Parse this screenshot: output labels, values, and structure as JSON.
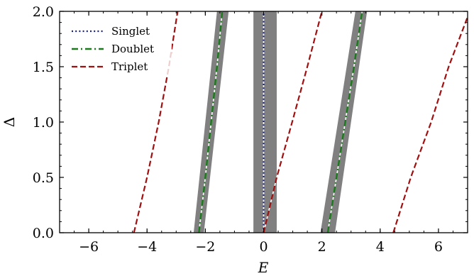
{
  "chart_data": {
    "type": "line",
    "xlabel": "E",
    "ylabel": "Δ",
    "xlim": [
      -7,
      7
    ],
    "ylim": [
      0,
      2
    ],
    "xticks": [
      -6,
      -4,
      -2,
      0,
      2,
      4,
      6
    ],
    "xtick_labels": [
      "−6",
      "−4",
      "−2",
      "0",
      "2",
      "4",
      "6"
    ],
    "yticks": [
      0,
      0.5,
      1,
      1.5,
      2
    ],
    "ytick_labels": [
      "0.0",
      "0.5",
      "1.0",
      "1.5",
      "2.0"
    ],
    "legend_position": "top-left",
    "colors": {
      "singlet": "#1a237e",
      "doublet": "#1b7a1b",
      "triplet": "#a01010",
      "band": "#808080",
      "underline": "#ffffff"
    },
    "bands": [
      {
        "name": "singlet-band",
        "left": [
          [
            -0.35,
            0
          ],
          [
            -0.35,
            2
          ]
        ],
        "right": [
          [
            0.45,
            0
          ],
          [
            0.45,
            2
          ]
        ]
      },
      {
        "name": "doublet-band-left",
        "left": [
          [
            -2.4,
            0
          ],
          [
            -1.6,
            2
          ]
        ],
        "right": [
          [
            -2.05,
            0
          ],
          [
            -1.2,
            2
          ]
        ]
      },
      {
        "name": "doublet-band-right",
        "left": [
          [
            1.95,
            0
          ],
          [
            3.15,
            2
          ]
        ],
        "right": [
          [
            2.45,
            0
          ],
          [
            3.55,
            2
          ]
        ]
      }
    ],
    "series": [
      {
        "name": "Singlet",
        "style": "dotted",
        "segments": [
          [
            [
              0,
              0
            ],
            [
              0,
              2
            ]
          ]
        ]
      },
      {
        "name": "Doublet",
        "style": "dashdot",
        "segments": [
          [
            [
              -2.22,
              0
            ],
            [
              -2.0,
              0.5
            ],
            [
              -1.8,
              1.0
            ],
            [
              -1.6,
              1.5
            ],
            [
              -1.42,
              2.0
            ]
          ],
          [
            [
              2.2,
              0
            ],
            [
              2.5,
              0.5
            ],
            [
              2.8,
              1.0
            ],
            [
              3.1,
              1.5
            ],
            [
              3.38,
              2.0
            ]
          ]
        ]
      },
      {
        "name": "Triplet",
        "style": "dashed",
        "segments": [
          [
            [
              -4.45,
              0
            ],
            [
              -4.0,
              0.5
            ],
            [
              -3.6,
              1.0
            ],
            [
              -3.25,
              1.5
            ],
            [
              -2.95,
              2.0
            ]
          ],
          [
            [
              0,
              0
            ],
            [
              0.45,
              0.5
            ],
            [
              0.98,
              1.0
            ],
            [
              1.5,
              1.5
            ],
            [
              2.0,
              2.0
            ]
          ],
          [
            [
              4.45,
              0
            ],
            [
              5.05,
              0.5
            ],
            [
              5.75,
              1.0
            ],
            [
              6.35,
              1.5
            ],
            [
              7.0,
              1.95
            ]
          ]
        ]
      }
    ]
  }
}
